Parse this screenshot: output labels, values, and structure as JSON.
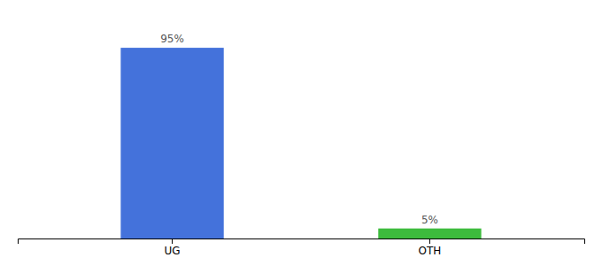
{
  "chart_data": {
    "type": "bar",
    "categories": [
      "UG",
      "OTH"
    ],
    "values": [
      95,
      5
    ],
    "value_labels": [
      "95%",
      "5%"
    ],
    "colors": [
      "#4472db",
      "#3dbb3d"
    ],
    "ylim": [
      0,
      110
    ],
    "data_labels": true,
    "tick_labels": "x"
  }
}
